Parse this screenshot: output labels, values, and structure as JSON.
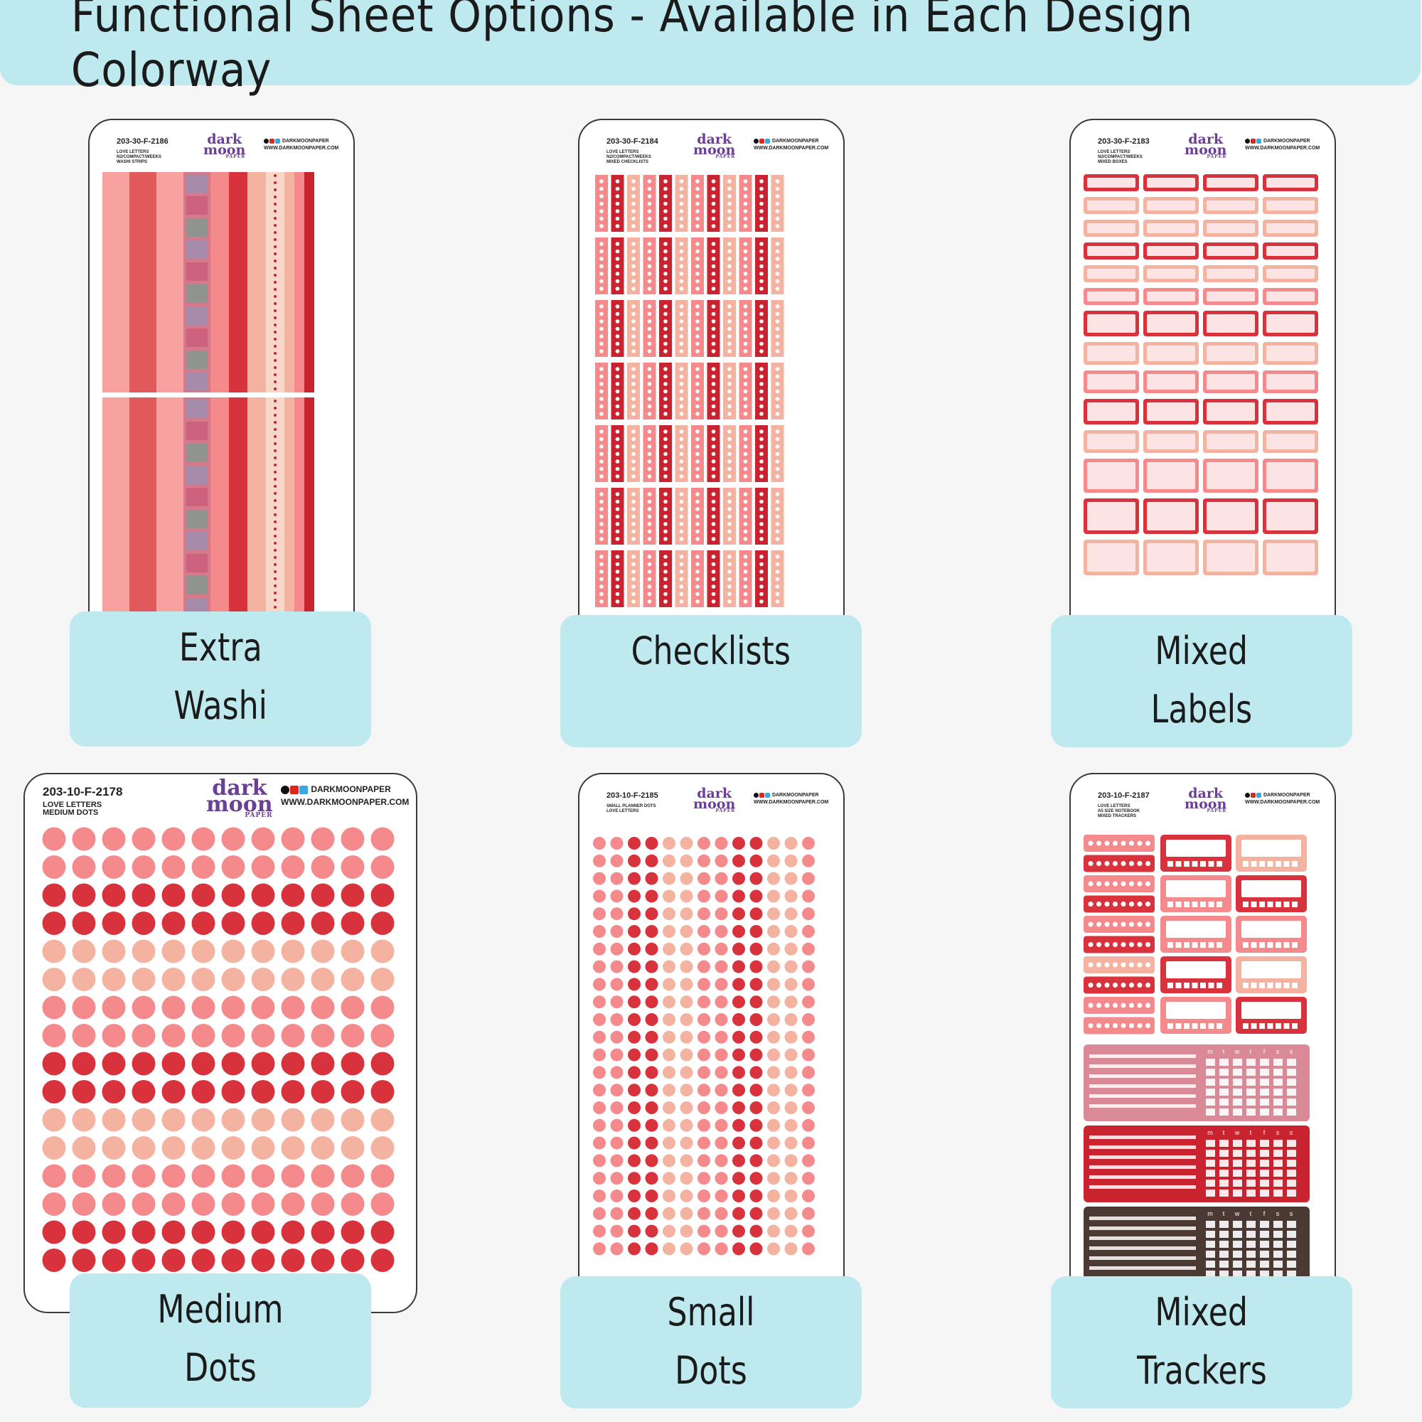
{
  "banner": {
    "title": "Functional Sheet Options - Available in Each Design Colorway"
  },
  "colors": {
    "banner_bg": "#bde9ef",
    "red": "#d8333c",
    "dark_red": "#c8232f",
    "coral": "#e05a5c",
    "pink": "#f48a8c",
    "light_pink": "#f7a2a0",
    "peach": "#f4b3a0",
    "blush": "#fce4e4"
  },
  "brand": {
    "logo_line1": "dark",
    "logo_line2": "moon",
    "logo_line3": "PAPER",
    "handle": "DARKMOONPAPER",
    "website": "WWW.DARKMOONPAPER.COM"
  },
  "products": [
    {
      "code": "203-30-F-2186",
      "line1": "LOVE LETTERS",
      "line2": "N2/COMPACT/WEEKS",
      "line3": "WASHI STRIPS",
      "label": [
        "Extra",
        "Washi"
      ],
      "type": "washi"
    },
    {
      "code": "203-30-F-2184",
      "line1": "LOVE LETTERS",
      "line2": "N2/COMPACT/WEEKS",
      "line3": "MIXED CHECKLISTS",
      "label": [
        "Checklists"
      ],
      "type": "checklists"
    },
    {
      "code": "203-30-F-2183",
      "line1": "LOVE LETTERS",
      "line2": "N2/COMPACT/WEEKS",
      "line3": "MIXED BOXES",
      "label": [
        "Mixed",
        "Labels"
      ],
      "type": "labels"
    },
    {
      "code": "203-10-F-2178",
      "line1": "LOVE LETTERS",
      "line2": "MEDIUM DOTS",
      "line3": "",
      "label": [
        "Medium",
        "Dots"
      ],
      "type": "medium-dots"
    },
    {
      "code": "203-10-F-2185",
      "line1": "SMALL PLANNER DOTS",
      "line2": "LOVE LETTERS",
      "line3": "",
      "label": [
        "Small",
        "Dots"
      ],
      "type": "small-dots"
    },
    {
      "code": "203-10-F-2187",
      "line1": "LOVE LETTERS",
      "line2": "A5 SIZE NOTEBOOK",
      "line3": "MIXED TRACKERS",
      "label": [
        "Mixed",
        "Trackers"
      ],
      "type": "trackers"
    }
  ],
  "week_letters": [
    "m",
    "t",
    "w",
    "t",
    "f",
    "s",
    "s"
  ]
}
